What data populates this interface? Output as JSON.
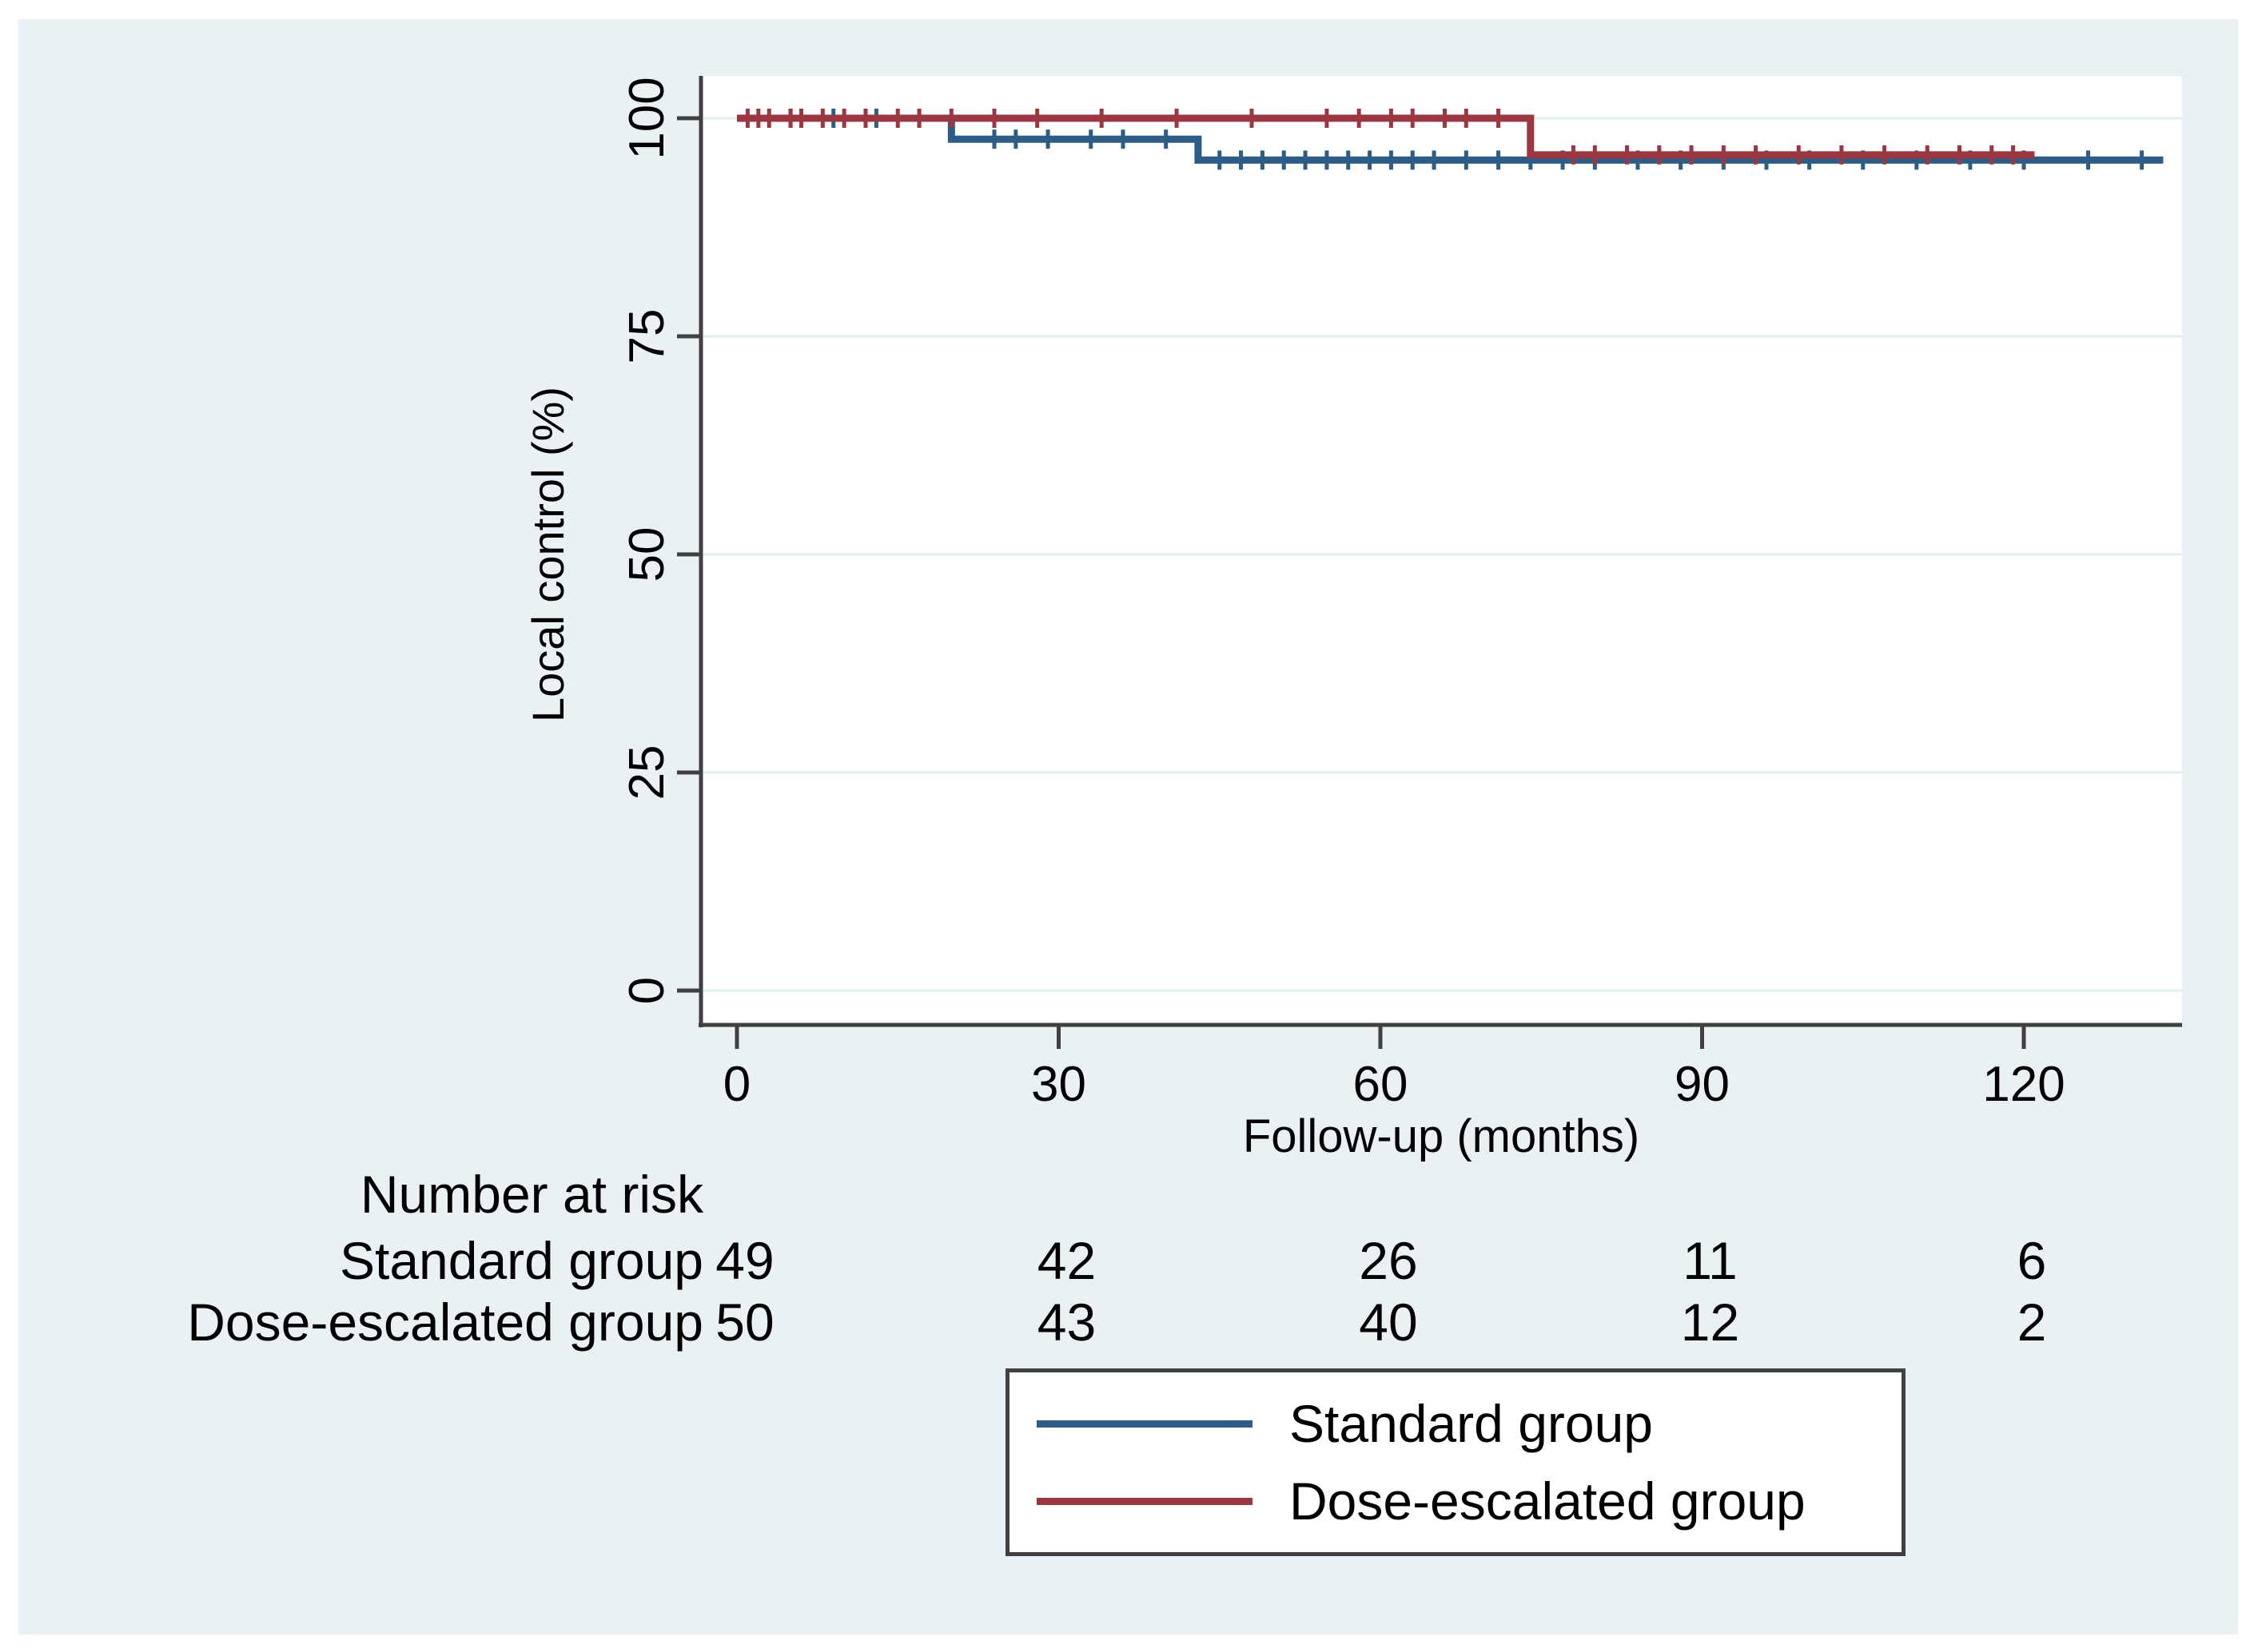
{
  "figure": {
    "colors": {
      "page_bg": "#ffffff",
      "panel_bg": "#eaf1f4",
      "plot_bg": "#ffffff",
      "grid": "#e3eef1",
      "axis": "#404040",
      "text": "#000000"
    }
  },
  "chart_data": {
    "type": "line",
    "subtype": "kaplan_meier_step",
    "title": "",
    "xlabel": "Follow-up (months)",
    "ylabel": "Local control (%)",
    "xticks": [
      0,
      30,
      60,
      90,
      120
    ],
    "yticks": [
      0,
      25,
      50,
      75,
      100
    ],
    "xlim": [
      0,
      135
    ],
    "ylim": [
      0,
      105
    ],
    "grid": "horizontal-only",
    "legend_position": "bottom-right-outside",
    "series": [
      {
        "name": "Standard group",
        "color": "#2d5c87",
        "steps": [
          [
            0,
            100
          ],
          [
            20,
            97.6
          ],
          [
            43,
            95.2
          ]
        ],
        "end_time": 133,
        "censor_times": [
          5,
          9,
          13,
          17,
          24,
          26,
          29,
          33,
          36,
          40,
          45,
          47,
          49,
          51,
          53,
          55,
          57,
          59,
          61,
          63,
          65,
          68,
          71,
          74,
          77,
          80,
          84,
          88,
          92,
          96,
          100,
          105,
          110,
          115,
          120,
          126,
          131
        ]
      },
      {
        "name": "Dose-escalated group",
        "color": "#9b3740",
        "steps": [
          [
            0,
            100
          ],
          [
            74,
            95.8
          ]
        ],
        "end_time": 121,
        "censor_times": [
          1,
          2,
          3,
          5,
          6,
          8,
          10,
          12,
          15,
          17,
          20,
          24,
          28,
          34,
          41,
          48,
          55,
          58,
          61,
          63,
          66,
          68,
          71,
          78,
          80,
          83,
          86,
          89,
          92,
          95,
          99,
          103,
          107,
          111,
          114,
          117,
          119
        ]
      }
    ],
    "at_risk": {
      "header": "Number at risk",
      "times": [
        0,
        30,
        60,
        90,
        120
      ],
      "rows": [
        {
          "label": "Standard group",
          "values": [
            "49",
            "42",
            "26",
            "11",
            "6"
          ]
        },
        {
          "label": "Dose-escalated group",
          "values": [
            "50",
            "43",
            "40",
            "12",
            "2"
          ]
        }
      ]
    }
  }
}
